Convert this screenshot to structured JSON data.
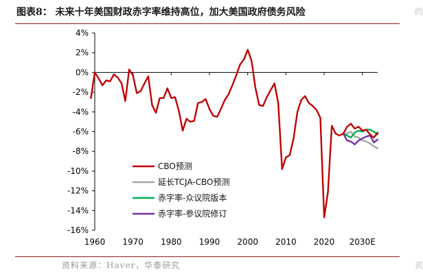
{
  "header": {
    "title": "图表8：  未来十年美国财政赤字率维持高位，加大美国政府债务风险"
  },
  "footer": {
    "source": "资料来源：Haver，华泰研究"
  },
  "edge": {
    "top_char": "的",
    "bottom_char": "资"
  },
  "chart_data": {
    "type": "line",
    "title": "",
    "xlabel": "",
    "ylabel": "",
    "ylim": [
      -16,
      4
    ],
    "xlim": [
      1960,
      2034
    ],
    "yticks": [
      4,
      2,
      0,
      -2,
      -4,
      -6,
      -8,
      -10,
      -12,
      -14,
      -16
    ],
    "ytick_labels": [
      "4%",
      "2%",
      "0%",
      "-2%",
      "-4%",
      "-6%",
      "-8%",
      "-10%",
      "-12%",
      "-14%",
      "-16%"
    ],
    "xticks": [
      1960,
      1970,
      1980,
      1990,
      2000,
      2010,
      2020,
      2030
    ],
    "xtick_labels": [
      "1960",
      "1970",
      "1980",
      "1990",
      "2000",
      "2010",
      "2020",
      "2030E"
    ],
    "grid": false,
    "legend_position": "lower-left",
    "series": [
      {
        "name": "CBO预测",
        "color": "#c00000",
        "x": [
          1959,
          1960,
          1961,
          1962,
          1963,
          1964,
          1965,
          1966,
          1967,
          1968,
          1969,
          1970,
          1971,
          1972,
          1973,
          1974,
          1975,
          1976,
          1977,
          1978,
          1979,
          1980,
          1981,
          1982,
          1983,
          1984,
          1985,
          1986,
          1987,
          1988,
          1989,
          1990,
          1991,
          1992,
          1993,
          1994,
          1995,
          1996,
          1997,
          1998,
          1999,
          2000,
          2001,
          2002,
          2003,
          2004,
          2005,
          2006,
          2007,
          2008,
          2009,
          2010,
          2011,
          2012,
          2013,
          2014,
          2015,
          2016,
          2017,
          2018,
          2019,
          2020,
          2021,
          2022,
          2023,
          2024,
          2025,
          2026,
          2027,
          2028,
          2029,
          2030,
          2031,
          2032,
          2033,
          2034
        ],
        "values": [
          -2.6,
          0.0,
          -0.6,
          -1.3,
          -0.8,
          -0.9,
          -0.2,
          -0.5,
          -1.1,
          -2.9,
          0.3,
          -0.3,
          -2.1,
          -1.9,
          -1.1,
          -0.4,
          -3.3,
          -4.1,
          -2.6,
          -2.6,
          -1.6,
          -2.6,
          -2.5,
          -3.9,
          -5.9,
          -4.7,
          -5.0,
          -4.9,
          -3.1,
          -3.0,
          -2.7,
          -3.7,
          -4.4,
          -4.5,
          -3.7,
          -2.8,
          -2.2,
          -1.3,
          -0.3,
          0.8,
          1.3,
          2.3,
          1.2,
          -1.5,
          -3.3,
          -3.4,
          -2.5,
          -1.8,
          -1.1,
          -3.1,
          -9.8,
          -8.6,
          -8.4,
          -6.7,
          -4.0,
          -2.8,
          -2.4,
          -3.1,
          -3.4,
          -3.8,
          -4.6,
          -14.7,
          -12.1,
          -5.4,
          -6.2,
          -6.4,
          -6.2,
          -5.5,
          -5.2,
          -5.7,
          -5.5,
          -5.9,
          -5.8,
          -6.3,
          -6.6,
          -6.1
        ]
      },
      {
        "name": "延长TCJA-CBO预测",
        "color": "#a6a6a6",
        "x": [
          2025,
          2026,
          2027,
          2028,
          2029,
          2030,
          2031,
          2032,
          2033,
          2034
        ],
        "values": [
          -6.2,
          -6.2,
          -6.0,
          -6.5,
          -6.6,
          -6.9,
          -7.0,
          -7.2,
          -7.5,
          -7.7
        ]
      },
      {
        "name": "赤字率-众议院版本",
        "color": "#00b050",
        "x": [
          2025,
          2026,
          2027,
          2028,
          2029,
          2030,
          2031,
          2032,
          2033,
          2034
        ],
        "values": [
          -6.2,
          -6.4,
          -6.6,
          -6.1,
          -5.9,
          -6.0,
          -5.8,
          -5.8,
          -6.0,
          -6.3
        ]
      },
      {
        "name": "赤字率-参议院修订",
        "color": "#7030a0",
        "x": [
          2025,
          2026,
          2027,
          2028,
          2029,
          2030,
          2031,
          2032,
          2033,
          2034
        ],
        "values": [
          -6.2,
          -6.9,
          -7.0,
          -7.3,
          -6.9,
          -6.7,
          -6.5,
          -6.4,
          -7.1,
          -6.8
        ]
      }
    ]
  }
}
